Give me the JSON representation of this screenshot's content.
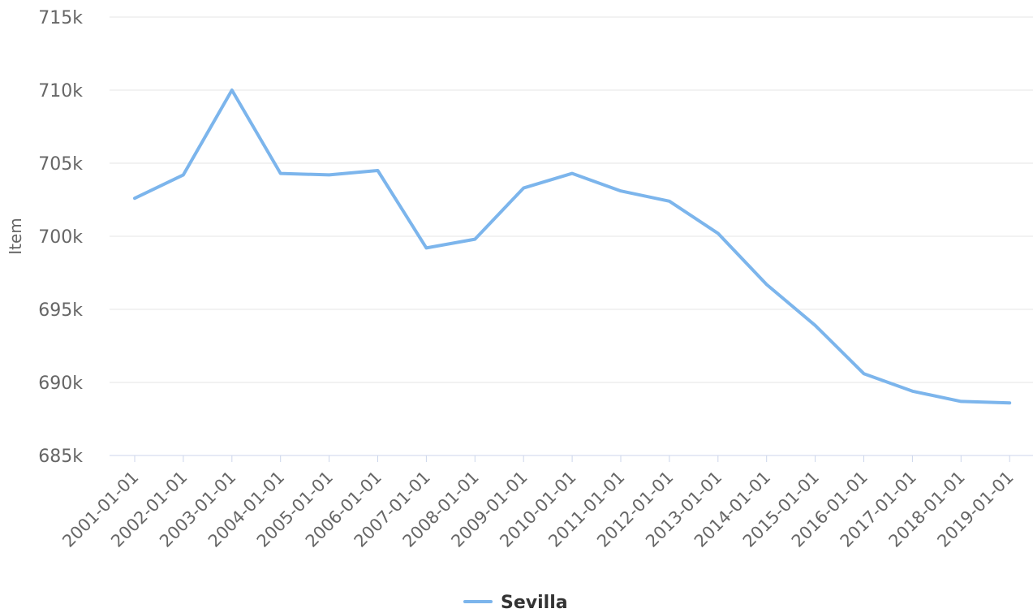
{
  "chart_data": {
    "type": "line",
    "ylabel": "Item",
    "xlabel": "",
    "ylim": [
      685000,
      715000
    ],
    "yticks": [
      685000,
      690000,
      695000,
      700000,
      705000,
      710000,
      715000
    ],
    "ytick_labels": [
      "685k",
      "690k",
      "695k",
      "700k",
      "705k",
      "710k",
      "715k"
    ],
    "x": [
      "2001-01-01",
      "2002-01-01",
      "2003-01-01",
      "2004-01-01",
      "2005-01-01",
      "2006-01-01",
      "2007-01-01",
      "2008-01-01",
      "2009-01-01",
      "2010-01-01",
      "2011-01-01",
      "2012-01-01",
      "2013-01-01",
      "2014-01-01",
      "2015-01-01",
      "2016-01-01",
      "2017-01-01",
      "2018-01-01",
      "2019-01-01"
    ],
    "series": [
      {
        "name": "Sevilla",
        "color": "#7cb5ec",
        "values": [
          702600,
          704200,
          710000,
          704300,
          704200,
          704500,
          699200,
          699800,
          703300,
          704300,
          703100,
          702400,
          700200,
          696700,
          693900,
          690600,
          689400,
          688700,
          688600
        ]
      }
    ],
    "grid": true,
    "legend_position": "bottom-center"
  }
}
